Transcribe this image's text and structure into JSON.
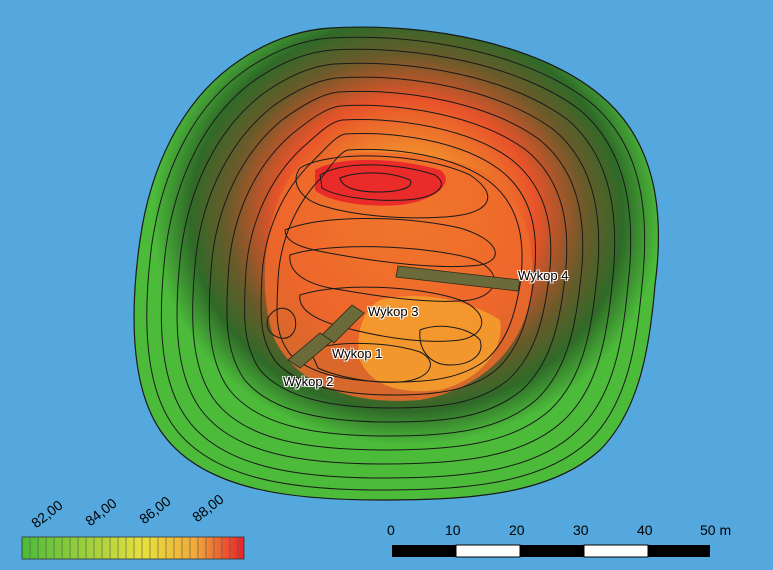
{
  "map": {
    "background_color": "#54a8dd",
    "low_color": "#4cbb3a",
    "high_color": "#e8232a",
    "trench_color": "#6b6a3a"
  },
  "trenches": [
    {
      "label": "Wykop 1"
    },
    {
      "label": "Wykop 2"
    },
    {
      "label": "Wykop 3"
    },
    {
      "label": "Wykop 4"
    }
  ],
  "legend": {
    "tick_labels": [
      "82,00",
      "84,00",
      "86,00",
      "88,00"
    ],
    "colors": [
      "#4cbb3a",
      "#9fd03c",
      "#e8e03c",
      "#f0a83a",
      "#e8232a"
    ]
  },
  "scalebar": {
    "tick_labels": [
      "0",
      "10",
      "20",
      "30",
      "40",
      "50 m"
    ]
  }
}
